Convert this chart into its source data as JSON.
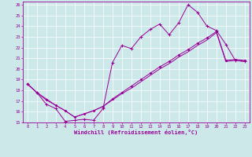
{
  "xlabel": "Windchill (Refroidissement éolien,°C)",
  "bg_color": "#cce8e8",
  "grid_color": "#ffffff",
  "line_color": "#990099",
  "xlim": [
    -0.5,
    23.5
  ],
  "ylim": [
    15,
    26.3
  ],
  "xticks": [
    0,
    1,
    2,
    3,
    4,
    5,
    6,
    7,
    8,
    9,
    10,
    11,
    12,
    13,
    14,
    15,
    16,
    17,
    18,
    19,
    20,
    21,
    22,
    23
  ],
  "yticks": [
    15,
    16,
    17,
    18,
    19,
    20,
    21,
    22,
    23,
    24,
    25,
    26
  ],
  "line1_x": [
    0,
    1,
    2,
    3,
    4,
    5,
    6,
    7,
    8,
    9,
    10,
    11,
    12,
    13,
    14,
    15,
    16,
    17,
    18,
    19,
    20,
    21,
    22,
    23
  ],
  "line1_y": [
    18.6,
    17.8,
    16.7,
    16.3,
    15.1,
    15.2,
    15.3,
    15.2,
    16.3,
    20.6,
    22.2,
    21.9,
    23.0,
    23.7,
    24.2,
    23.2,
    24.3,
    26.0,
    25.3,
    24.0,
    23.6,
    22.3,
    20.8,
    20.7
  ],
  "line2_x": [
    0,
    1,
    2,
    3,
    4,
    5,
    6,
    7,
    8,
    9,
    10,
    11,
    12,
    13,
    14,
    15,
    16,
    17,
    18,
    19,
    20,
    21,
    22,
    23
  ],
  "line2_y": [
    18.6,
    17.8,
    17.2,
    16.6,
    16.1,
    15.5,
    15.8,
    16.1,
    16.5,
    17.1,
    17.7,
    18.2,
    18.8,
    19.4,
    20.0,
    20.5,
    21.1,
    21.6,
    22.2,
    22.7,
    23.4,
    20.7,
    20.8,
    20.7
  ],
  "line3_x": [
    0,
    1,
    2,
    3,
    4,
    5,
    6,
    7,
    8,
    9,
    10,
    11,
    12,
    13,
    14,
    15,
    16,
    17,
    18,
    19,
    20,
    21,
    22,
    23
  ],
  "line3_y": [
    18.6,
    17.8,
    17.1,
    16.6,
    16.1,
    15.5,
    15.8,
    16.1,
    16.5,
    17.2,
    17.8,
    18.4,
    19.0,
    19.6,
    20.2,
    20.7,
    21.3,
    21.8,
    22.4,
    22.9,
    23.5,
    20.8,
    20.9,
    20.8
  ]
}
